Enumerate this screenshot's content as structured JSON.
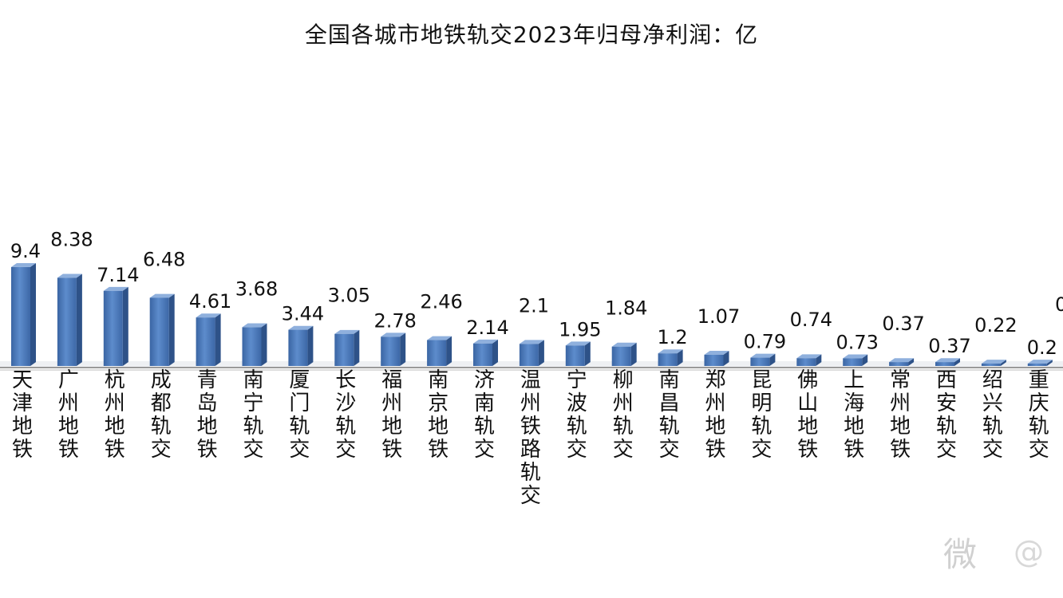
{
  "chart_data": {
    "type": "bar",
    "title": "全国各城市地铁轨交2023年归母净利润：亿",
    "xlabel": "",
    "ylabel": "",
    "ylim": [
      0,
      10
    ],
    "grid": false,
    "legend": "none",
    "categories": [
      "天津地铁",
      "广州地铁",
      "杭州地铁",
      "成都轨交",
      "青岛地铁",
      "南宁轨交",
      "厦门轨交",
      "长沙轨交",
      "福州地铁",
      "南京地铁",
      "济南轨交",
      "温州铁路轨交",
      "宁波轨交",
      "柳州轨交",
      "南昌轨交",
      "郑州地铁",
      "昆明轨交",
      "佛山地铁",
      "上海地铁",
      "常州地铁",
      "西安轨交",
      "绍兴轨交",
      "重庆轨交"
    ],
    "values": [
      9.4,
      8.38,
      7.14,
      6.48,
      4.61,
      3.68,
      3.44,
      3.05,
      2.78,
      2.46,
      2.14,
      2.1,
      1.95,
      1.84,
      1.2,
      1.07,
      0.79,
      0.74,
      0.73,
      0.37,
      0.37,
      0.22,
      0.2
    ],
    "data_labels": [
      "9.4",
      "8.38",
      "7.14",
      "6.48",
      "4.61",
      "3.68",
      "3.44",
      "3.05",
      "2.78",
      "2.46",
      "2.14",
      "2.1",
      "1.95",
      "1.84",
      "1.2",
      "1.07",
      "0.79",
      "0.74",
      "0.73",
      "0.37",
      "0.37",
      "0.22",
      "0.2"
    ],
    "partial_label": "0",
    "bar_color": "#4f81bd"
  },
  "watermark": {
    "glyph": "微",
    "text": "@"
  }
}
